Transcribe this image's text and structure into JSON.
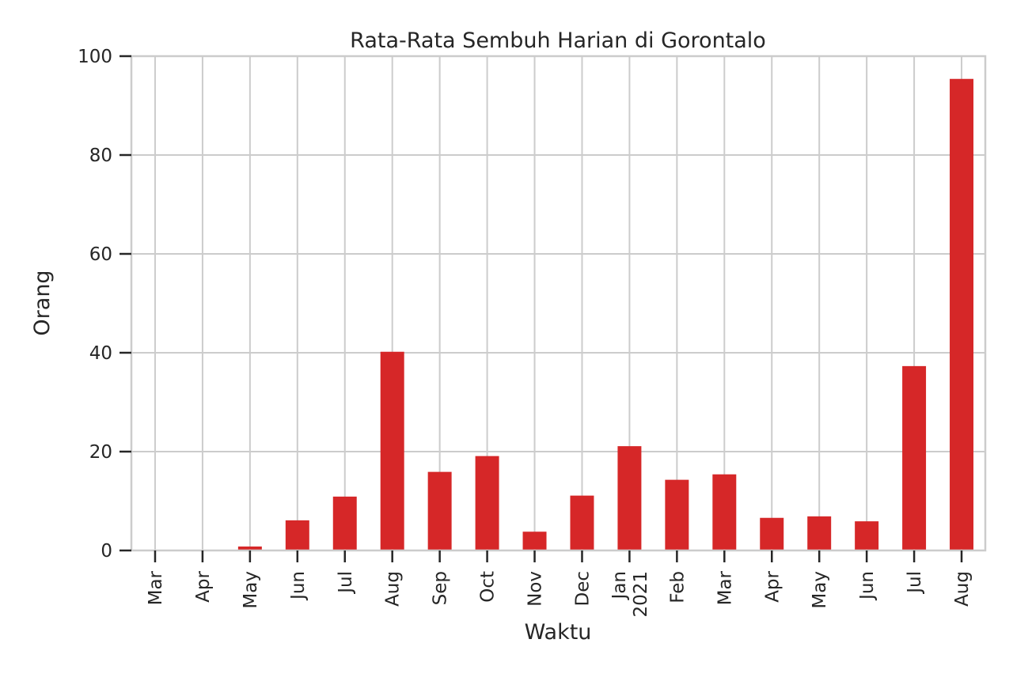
{
  "chart_data": {
    "type": "bar",
    "title": "Rata-Rata Sembuh Harian di Gorontalo",
    "xlabel": "Waktu",
    "ylabel": "Orang",
    "ylim": [
      0,
      100
    ],
    "yticks": [
      "0",
      "20",
      "40",
      "60",
      "80",
      "100"
    ],
    "grid": true,
    "categories": [
      "Mar",
      "Apr",
      "May",
      "Jun",
      "Jul",
      "Aug",
      "Sep",
      "Oct",
      "Nov",
      "Dec",
      "Jan\n2021",
      "Feb",
      "Mar",
      "Apr",
      "May",
      "Jun",
      "Jul",
      "Aug"
    ],
    "values": [
      0,
      0,
      0.8,
      6.1,
      10.9,
      40.2,
      15.9,
      19.1,
      3.8,
      11.1,
      21.1,
      14.3,
      15.4,
      6.6,
      6.9,
      5.9,
      37.3,
      95.4
    ],
    "bar_color": "#d62728"
  }
}
